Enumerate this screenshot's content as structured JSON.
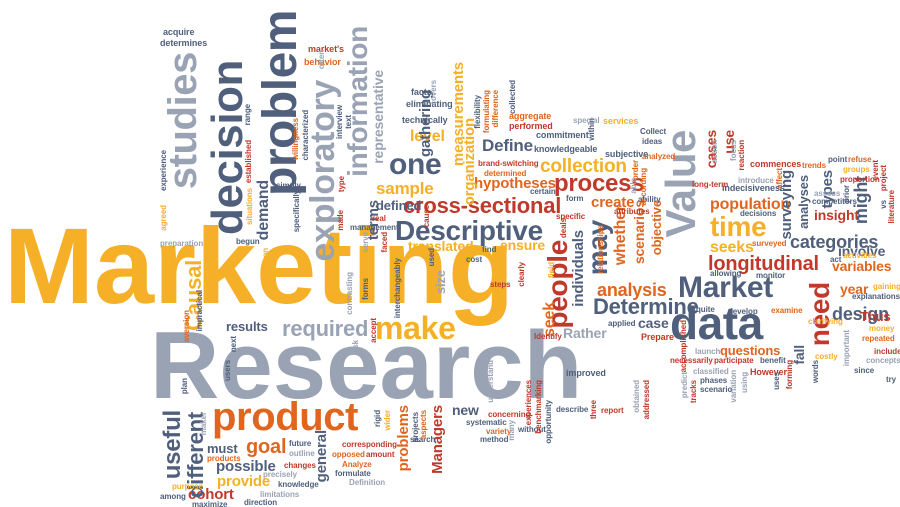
{
  "colors": {
    "yellow": "#f5b027",
    "red": "#c0392b",
    "orange": "#e0661f",
    "blue_gray": "#4f5f7c",
    "light_gray": "#9aa3b4"
  },
  "words": {
    "marketing": "Marketing",
    "research": "Research",
    "product": "product",
    "data": "data",
    "value": "Value",
    "problem": "problem",
    "decision": "decision",
    "studies": "studies",
    "information": "information",
    "exploratory": "exploratory",
    "make": "make",
    "descriptive": "Descriptive",
    "cross_sectional": "cross-sectional",
    "process": "process",
    "collection": "collection",
    "people": "people",
    "may": "may",
    "market": "Market",
    "determine": "Determine",
    "analysis": "analysis",
    "time": "time",
    "longitudinal": "longitudinal",
    "need": "need",
    "design": "design",
    "categories": "categories",
    "one": "one",
    "define": "Define",
    "sample": "sample",
    "useful": "useful",
    "different": "different",
    "goal": "goal",
    "possible": "possible",
    "provide": "provide",
    "cohort": "cohort",
    "must": "must",
    "required": "required",
    "results": "results",
    "customers": "customers",
    "plans": "plans",
    "managers": "Managers",
    "problems": "problems",
    "general": "general",
    "new": "new",
    "questions": "questions",
    "rather": "Rather",
    "case": "case",
    "insight": "insight",
    "involve": "involve",
    "variables": "variables",
    "year": "year",
    "population": "population",
    "seeks": "seeks",
    "create": "create",
    "hypotheses": "hypotheses",
    "translated": "translated",
    "ensure": "ensure",
    "defined": "defined",
    "level": "level",
    "gathering": "gathering",
    "terms": "terms",
    "demand": "demand",
    "causal": "Causal",
    "might": "might",
    "types": "types",
    "surveying": "surveying",
    "analyses": "analyses",
    "fall": "fall",
    "individuals": "individuals",
    "seek": "seek",
    "whether": "whether",
    "scenarios": "scenarios",
    "objective": "objective",
    "organization": "organization",
    "measurements": "measurements",
    "representative": "representative",
    "cases": "cases",
    "use": "use",
    "size": "size",
    "acquire": "acquire",
    "determines": "determines",
    "markets": "market's",
    "behavior": "behavior",
    "technically": "technically",
    "facts": "facts",
    "eliminating": "eliminating",
    "accuracy": "accuracy",
    "relationship": "relationship",
    "excellence": "excellence",
    "performed": "performed",
    "aggregate": "aggregate",
    "collected": "collected",
    "commitment": "commitment",
    "knowledgeable": "knowledgeable",
    "services": "services",
    "special": "special",
    "subjective": "subjective",
    "analyzed": "analyzed",
    "ideas": "ideas",
    "collect": "Collect",
    "commences": "commences",
    "trends": "trends",
    "point": "point",
    "refuse": "refuse",
    "groups": "groups",
    "proportion": "proportion",
    "indecisiveness": "indecisiveness",
    "introduce": "introduce",
    "competitors": "competitors",
    "assess": "assess",
    "decisions": "decisions",
    "surveyed": "surveyed",
    "allowing": "allowing",
    "monitor": "monitor",
    "act": "act",
    "activities": "activities",
    "gaining": "gaining",
    "explanations": "explanations",
    "interpret": "interpret",
    "examine": "examine",
    "develop": "develop",
    "clarifying": "clarifying",
    "money": "money",
    "repeated": "repeated",
    "include": "include",
    "costly": "costly",
    "concepts": "concepts",
    "since": "since",
    "try": "try",
    "however": "However",
    "forming": "forming",
    "participate": "participate",
    "benefit": "benefit",
    "launch": "launch",
    "necessarily": "necessarily",
    "classified": "classified",
    "phases": "phases",
    "scenario": "scenario",
    "quite": "quite",
    "accomplished": "accomplished",
    "tracks": "tracks",
    "prepare": "Prepare",
    "identify": "Identify",
    "applied": "applied",
    "improved": "improved",
    "report": "report",
    "three": "three",
    "describe": "describe",
    "addressed": "addressed",
    "obtained": "obtained",
    "within": "within",
    "without": "without",
    "opportunity": "opportunity",
    "benchmarking": "benchmarking",
    "experiences": "experiences",
    "systematic": "systematic",
    "concerning": "concerning",
    "variety": "variety",
    "method": "method",
    "many": "many",
    "understand": "understand",
    "search": "search",
    "aspects": "aspects",
    "projects": "projects",
    "wider": "wider",
    "rigid": "rigid",
    "corresponding": "corresponding",
    "amount": "amount",
    "opposed": "opposed",
    "analyze": "Analyze",
    "formulate": "formulate",
    "definition": "Definition",
    "changes": "changes",
    "knowledge": "knowledge",
    "precisely": "precisely",
    "future": "future",
    "outline": "outline",
    "limitations": "limitations",
    "direction": "direction",
    "among": "among",
    "maximize": "maximize",
    "purpose": "purpose",
    "products": "products",
    "aversion": "aversion",
    "impractical": "impractical",
    "preparation": "preparation",
    "agreed": "agreed",
    "experience": "experience",
    "established": "established",
    "situations": "situations",
    "simply": "simply",
    "specifically": "specifically",
    "willingness": "willingness",
    "characterized": "characterized",
    "interview": "interview",
    "text": "text",
    "range": "range",
    "begun": "begun",
    "management": "management",
    "real": "real",
    "made": "made",
    "basic": "basic",
    "find": "find",
    "cost": "cost",
    "used": "used",
    "steps": "steps",
    "deals": "deals",
    "specific": "specific",
    "form": "form",
    "certain": "certain",
    "determined": "determined",
    "experiments": "experiments",
    "brand_switching": "brand-switching",
    "formulating": "formulating",
    "difference": "difference",
    "flexibility": "flexibility",
    "attributes": "attributes",
    "ability": "ability",
    "order": "order",
    "according": "according",
    "affect": "affect",
    "long_term": "long-term",
    "reaction": "reaction",
    "focus": "focus",
    "action": "action",
    "event": "event",
    "project": "project",
    "literature": "literature",
    "measuring": "measuring",
    "vs": "vs",
    "prior": "prior",
    "accept": "accept",
    "forms": "forms",
    "contrasting": "contrasting",
    "interchangeably": "interchangeably",
    "risk": "risk",
    "next": "next",
    "beginning": "beginning",
    "users": "users",
    "plan": "plan",
    "maker": "maker",
    "clearly": "clearly",
    "relationships": "relationships",
    "important": "important",
    "thus": "Thus",
    "words": "words",
    "uses": "uses",
    "using": "using",
    "variation": "variation",
    "predict": "predict",
    "covers": "covers",
    "often": "often",
    "known": "known",
    "faced": "faced",
    "serve": "serve",
    "type": "type",
    "common": "common",
    "cause": "cause",
    "mind": "mind",
    "field": "field",
    "able": "able"
  }
}
